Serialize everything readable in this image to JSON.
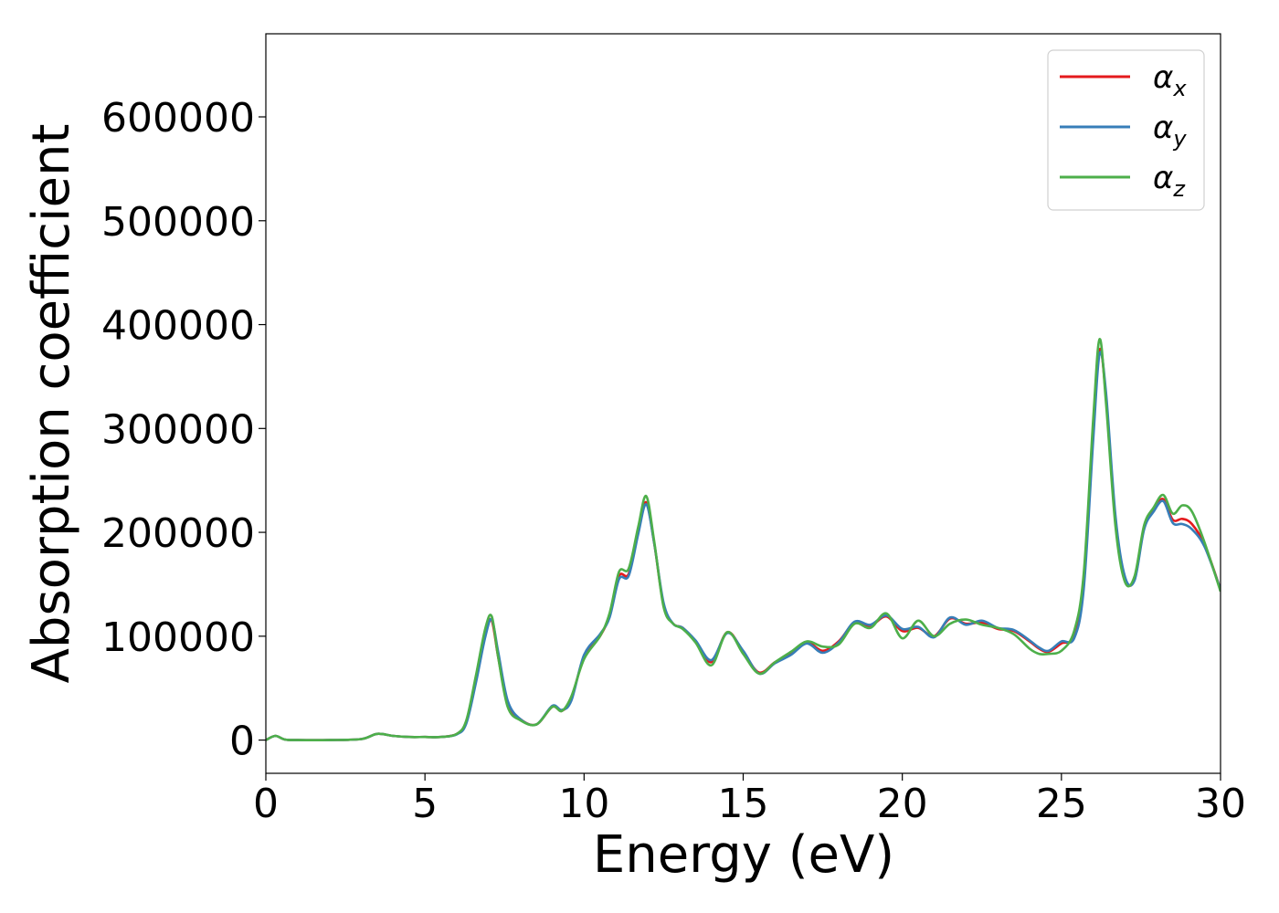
{
  "chart_data": {
    "type": "line",
    "xlabel": "Energy (eV)",
    "ylabel": "Absorption coefficient",
    "xlim": [
      0,
      30
    ],
    "ylim": [
      -32000,
      680000
    ],
    "xticks": [
      0,
      5,
      10,
      15,
      20,
      25,
      30
    ],
    "yticks": [
      0,
      100000,
      200000,
      300000,
      400000,
      500000,
      600000
    ],
    "grid": false,
    "legend_position": "top-right",
    "series": [
      {
        "name": "α",
        "subscript": "x",
        "color": "#e41a1c",
        "x": [
          0,
          0.3,
          0.6,
          1,
          2,
          3,
          3.5,
          4,
          4.5,
          5,
          5.5,
          6,
          6.3,
          6.6,
          6.9,
          7.1,
          7.3,
          7.6,
          8,
          8.5,
          9,
          9.3,
          9.6,
          10,
          10.5,
          10.8,
          11.1,
          11.4,
          11.7,
          11.95,
          12.2,
          12.5,
          12.8,
          13.1,
          13.5,
          14,
          14.5,
          15,
          15.5,
          16,
          16.5,
          17,
          17.5,
          18,
          18.5,
          19,
          19.5,
          20,
          20.5,
          21,
          21.5,
          22,
          22.5,
          23,
          23.5,
          24,
          24.3,
          24.6,
          25,
          25.4,
          25.7,
          26,
          26.2,
          26.4,
          26.7,
          27,
          27.3,
          27.6,
          27.9,
          28.2,
          28.5,
          28.8,
          29.1,
          29.5,
          30
        ],
        "y": [
          0,
          4000,
          500,
          0,
          0,
          1000,
          6000,
          4000,
          3000,
          3000,
          3000,
          6000,
          18000,
          60000,
          105000,
          115000,
          80000,
          35000,
          20000,
          15000,
          32000,
          28000,
          40000,
          80000,
          100000,
          120000,
          158000,
          160000,
          200000,
          229000,
          190000,
          130000,
          112000,
          108000,
          95000,
          75000,
          104000,
          85000,
          65000,
          75000,
          83000,
          94000,
          86000,
          95000,
          113000,
          110000,
          119000,
          105000,
          108000,
          100000,
          117000,
          112000,
          113000,
          107000,
          105000,
          95000,
          88000,
          85000,
          93000,
          100000,
          150000,
          300000,
          376000,
          330000,
          210000,
          155000,
          155000,
          205000,
          222000,
          232000,
          212000,
          213000,
          208000,
          188000,
          145000
        ]
      },
      {
        "name": "α",
        "subscript": "y",
        "color": "#377eb8",
        "x": [
          0,
          0.3,
          0.6,
          1,
          2,
          3,
          3.5,
          4,
          4.5,
          5,
          5.5,
          6,
          6.3,
          6.6,
          6.9,
          7.1,
          7.3,
          7.6,
          8,
          8.5,
          9,
          9.3,
          9.6,
          10,
          10.5,
          10.8,
          11.1,
          11.4,
          11.7,
          11.95,
          12.2,
          12.5,
          12.8,
          13.1,
          13.5,
          14,
          14.5,
          15,
          15.5,
          16,
          16.5,
          17,
          17.5,
          18,
          18.5,
          19,
          19.5,
          20,
          20.5,
          21,
          21.5,
          22,
          22.5,
          23,
          23.5,
          24,
          24.3,
          24.6,
          25,
          25.4,
          25.7,
          26,
          26.2,
          26.4,
          26.7,
          27,
          27.3,
          27.6,
          27.9,
          28.2,
          28.5,
          28.8,
          29.1,
          29.5,
          30
        ],
        "y": [
          0,
          4000,
          500,
          0,
          0,
          1000,
          6000,
          4000,
          3000,
          3000,
          3000,
          5500,
          16000,
          55000,
          100000,
          116000,
          85000,
          38000,
          20000,
          15000,
          33000,
          29000,
          38000,
          82000,
          102000,
          118000,
          155000,
          158000,
          198000,
          227000,
          190000,
          132000,
          112000,
          108000,
          96000,
          77000,
          103000,
          86000,
          64000,
          74000,
          82000,
          93000,
          84000,
          94000,
          114000,
          111000,
          120000,
          107000,
          109000,
          99000,
          118000,
          111000,
          115000,
          108000,
          106000,
          96000,
          89000,
          86000,
          95000,
          98000,
          145000,
          290000,
          372000,
          335000,
          215000,
          157000,
          154000,
          203000,
          220000,
          230000,
          209000,
          208000,
          203000,
          186000,
          145000
        ]
      },
      {
        "name": "α",
        "subscript": "z",
        "color": "#4daf4a",
        "x": [
          0,
          0.3,
          0.6,
          1,
          2,
          3,
          3.5,
          4,
          4.5,
          5,
          5.5,
          6,
          6.3,
          6.6,
          6.9,
          7.1,
          7.3,
          7.6,
          8,
          8.5,
          9,
          9.3,
          9.6,
          10,
          10.5,
          10.8,
          11.1,
          11.4,
          11.7,
          11.95,
          12.2,
          12.5,
          12.8,
          13.1,
          13.5,
          14,
          14.5,
          15,
          15.5,
          16,
          16.5,
          17,
          17.5,
          18,
          18.5,
          19,
          19.5,
          20,
          20.5,
          21,
          21.5,
          22,
          22.5,
          23,
          23.5,
          24,
          24.3,
          24.6,
          25,
          25.4,
          25.7,
          26,
          26.2,
          26.4,
          26.7,
          27,
          27.3,
          27.6,
          27.9,
          28.2,
          28.5,
          28.8,
          29.1,
          29.5,
          30
        ],
        "y": [
          0,
          4000,
          500,
          0,
          0,
          1000,
          6000,
          4000,
          3000,
          3000,
          3000,
          6000,
          19000,
          62000,
          108000,
          119000,
          80000,
          32000,
          19000,
          15000,
          32000,
          28000,
          42000,
          78000,
          100000,
          122000,
          162000,
          165000,
          205000,
          235000,
          192000,
          128000,
          112000,
          107000,
          94000,
          72000,
          104000,
          83000,
          64000,
          75000,
          85000,
          95000,
          90000,
          92000,
          112000,
          108000,
          122000,
          98000,
          115000,
          100000,
          112000,
          116000,
          111000,
          108000,
          102000,
          88000,
          83000,
          83000,
          86000,
          105000,
          160000,
          310000,
          386000,
          325000,
          205000,
          152000,
          158000,
          207000,
          224000,
          236000,
          218000,
          226000,
          220000,
          190000,
          143000
        ]
      }
    ]
  }
}
